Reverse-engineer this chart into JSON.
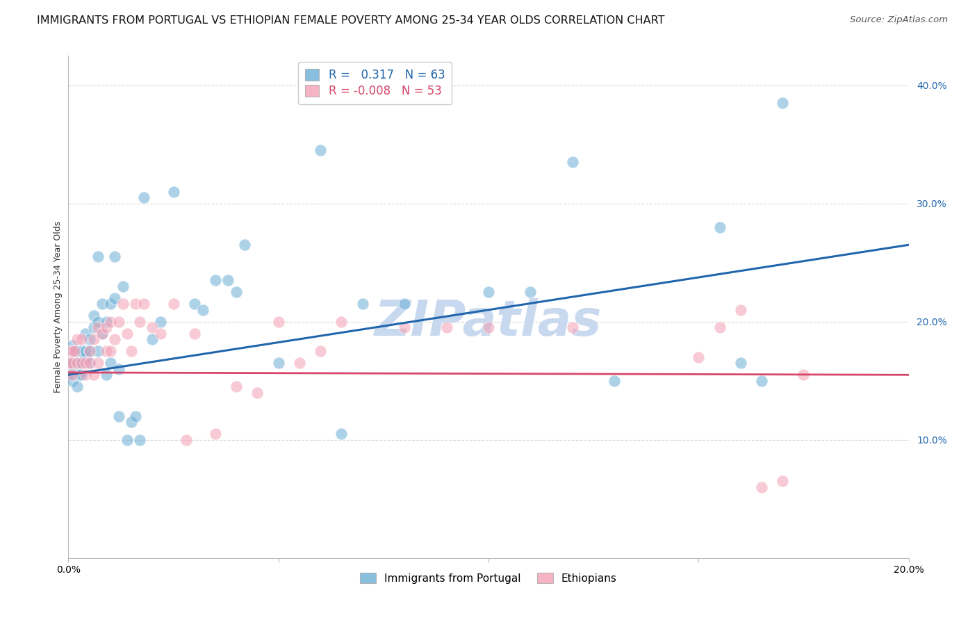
{
  "title": "IMMIGRANTS FROM PORTUGAL VS ETHIOPIAN FEMALE POVERTY AMONG 25-34 YEAR OLDS CORRELATION CHART",
  "source": "Source: ZipAtlas.com",
  "ylabel": "Female Poverty Among 25-34 Year Olds",
  "x_min": 0.0,
  "x_max": 0.2,
  "y_min": 0.0,
  "y_max": 0.425,
  "x_ticks": [
    0.0,
    0.05,
    0.1,
    0.15,
    0.2
  ],
  "y_ticks_right": [
    0.1,
    0.2,
    0.3,
    0.4
  ],
  "y_tick_labels_right": [
    "10.0%",
    "20.0%",
    "30.0%",
    "40.0%"
  ],
  "series1_color": "#6baed6",
  "series2_color": "#f4a0b5",
  "trend1_color": "#2166ac",
  "trend2_color": "#d6476b",
  "background_color": "#ffffff",
  "grid_color": "#cccccc",
  "watermark": "ZIPatlas",
  "watermark_color": "#c8d8ee",
  "series1_x": [
    0.0003,
    0.0005,
    0.0007,
    0.001,
    0.001,
    0.0012,
    0.0015,
    0.0018,
    0.002,
    0.002,
    0.0025,
    0.003,
    0.003,
    0.003,
    0.004,
    0.004,
    0.004,
    0.005,
    0.005,
    0.005,
    0.006,
    0.006,
    0.007,
    0.007,
    0.007,
    0.008,
    0.008,
    0.009,
    0.009,
    0.01,
    0.01,
    0.011,
    0.011,
    0.012,
    0.012,
    0.013,
    0.014,
    0.015,
    0.016,
    0.017,
    0.018,
    0.02,
    0.022,
    0.025,
    0.03,
    0.032,
    0.035,
    0.038,
    0.04,
    0.042,
    0.05,
    0.06,
    0.065,
    0.07,
    0.08,
    0.1,
    0.11,
    0.12,
    0.13,
    0.155,
    0.16,
    0.165,
    0.17
  ],
  "series1_y": [
    0.155,
    0.165,
    0.175,
    0.18,
    0.15,
    0.165,
    0.16,
    0.175,
    0.145,
    0.165,
    0.155,
    0.155,
    0.175,
    0.165,
    0.17,
    0.19,
    0.175,
    0.175,
    0.185,
    0.165,
    0.195,
    0.205,
    0.2,
    0.255,
    0.175,
    0.19,
    0.215,
    0.155,
    0.2,
    0.165,
    0.215,
    0.22,
    0.255,
    0.12,
    0.16,
    0.23,
    0.1,
    0.115,
    0.12,
    0.1,
    0.305,
    0.185,
    0.2,
    0.31,
    0.215,
    0.21,
    0.235,
    0.235,
    0.225,
    0.265,
    0.165,
    0.345,
    0.105,
    0.215,
    0.215,
    0.225,
    0.225,
    0.335,
    0.15,
    0.28,
    0.165,
    0.15,
    0.385
  ],
  "series2_x": [
    0.0003,
    0.0005,
    0.0007,
    0.001,
    0.001,
    0.0015,
    0.002,
    0.002,
    0.003,
    0.003,
    0.004,
    0.004,
    0.005,
    0.005,
    0.006,
    0.006,
    0.007,
    0.007,
    0.008,
    0.009,
    0.009,
    0.01,
    0.01,
    0.011,
    0.012,
    0.013,
    0.014,
    0.015,
    0.016,
    0.017,
    0.018,
    0.02,
    0.022,
    0.025,
    0.028,
    0.03,
    0.035,
    0.04,
    0.045,
    0.05,
    0.055,
    0.06,
    0.065,
    0.08,
    0.09,
    0.1,
    0.12,
    0.15,
    0.155,
    0.16,
    0.165,
    0.17,
    0.175
  ],
  "series2_y": [
    0.165,
    0.175,
    0.165,
    0.155,
    0.175,
    0.175,
    0.165,
    0.185,
    0.165,
    0.185,
    0.165,
    0.155,
    0.175,
    0.165,
    0.185,
    0.155,
    0.195,
    0.165,
    0.19,
    0.195,
    0.175,
    0.175,
    0.2,
    0.185,
    0.2,
    0.215,
    0.19,
    0.175,
    0.215,
    0.2,
    0.215,
    0.195,
    0.19,
    0.215,
    0.1,
    0.19,
    0.105,
    0.145,
    0.14,
    0.2,
    0.165,
    0.175,
    0.2,
    0.195,
    0.195,
    0.195,
    0.195,
    0.17,
    0.195,
    0.21,
    0.06,
    0.065,
    0.155
  ],
  "trend1_x0": 0.0,
  "trend1_x1": 0.2,
  "trend1_y0": 0.155,
  "trend1_y1": 0.265,
  "trend2_x0": 0.0,
  "trend2_x1": 0.2,
  "trend2_y0": 0.157,
  "trend2_y1": 0.155,
  "title_fontsize": 11.5,
  "source_fontsize": 9.5,
  "axis_label_fontsize": 9,
  "tick_fontsize": 10,
  "legend_fontsize": 12
}
